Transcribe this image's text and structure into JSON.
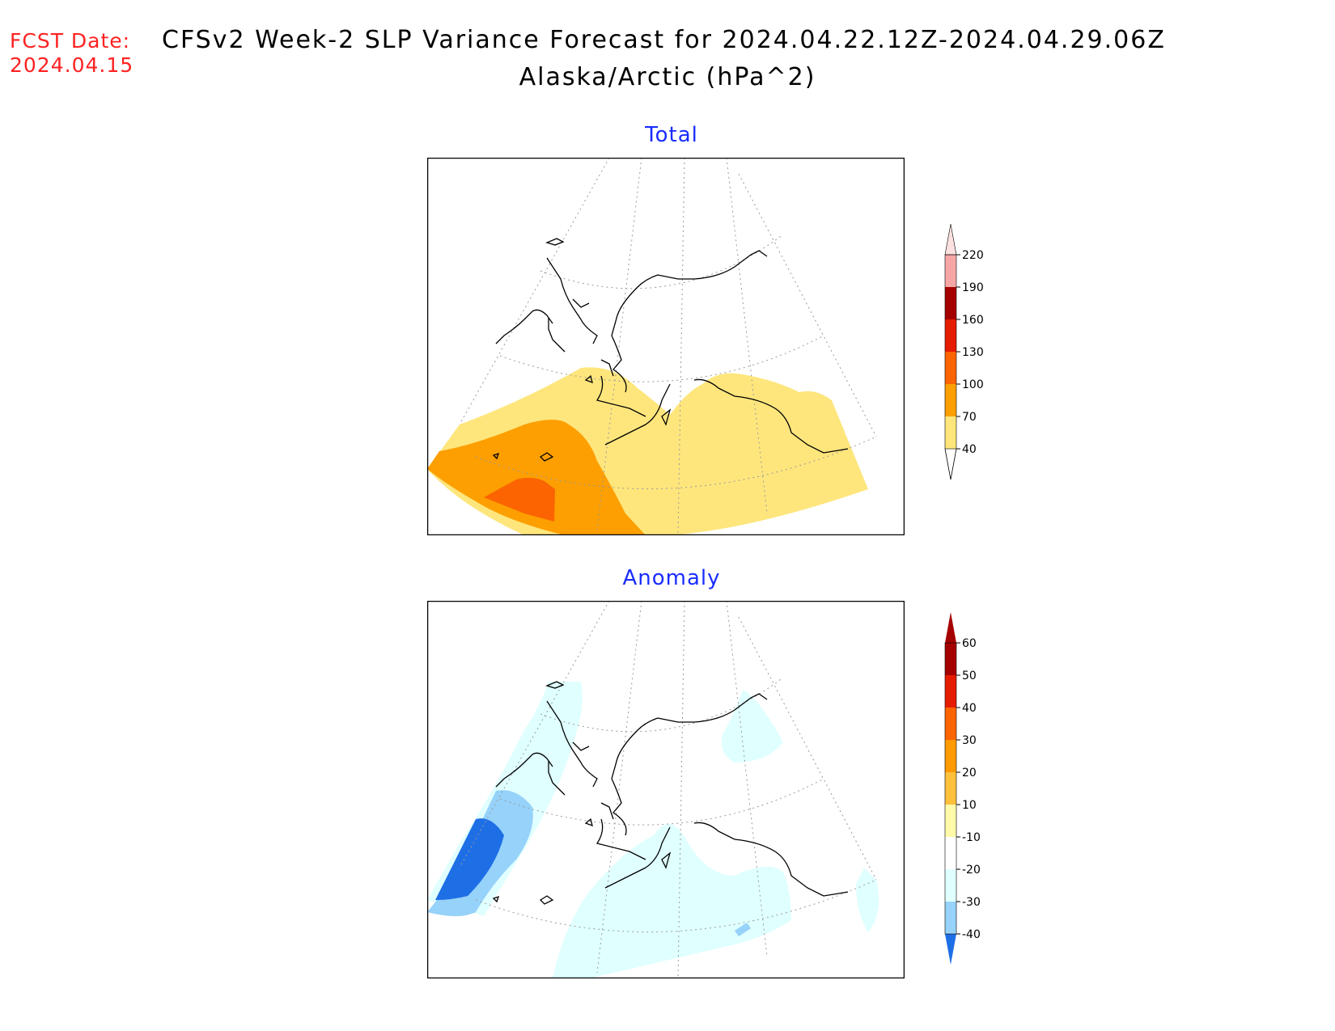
{
  "header": {
    "fcst_label": "FCST Date:",
    "fcst_date": "2024.04.15",
    "title_line1": "CFSv2 Week-2 SLP Variance Forecast for 2024.04.22.12Z-2024.04.29.06Z",
    "title_line2": "Alaska/Arctic (hPa^2)"
  },
  "panels": {
    "total": {
      "title": "Total",
      "legend": {
        "labels": [
          "40",
          "70",
          "100",
          "130",
          "160",
          "190",
          "220"
        ],
        "colors": [
          "#fee67d",
          "#fd9f00",
          "#fb6400",
          "#e51c00",
          "#a50000",
          "#f7a6a6",
          "#fde0e0"
        ]
      }
    },
    "anomaly": {
      "title": "Anomaly",
      "legend": {
        "labels": [
          "-40",
          "-30",
          "-20",
          "-10",
          "10",
          "20",
          "30",
          "40",
          "50",
          "60"
        ],
        "colors": [
          "#1e6ee6",
          "#96d2fa",
          "#e0ffff",
          "#ffffff",
          "#fffaaa",
          "#ffc03c",
          "#ff9a00",
          "#fb6400",
          "#e51c00",
          "#a50000"
        ],
        "low_end_color": "#1e6ee6",
        "high_end_color": "#a50000"
      }
    }
  }
}
